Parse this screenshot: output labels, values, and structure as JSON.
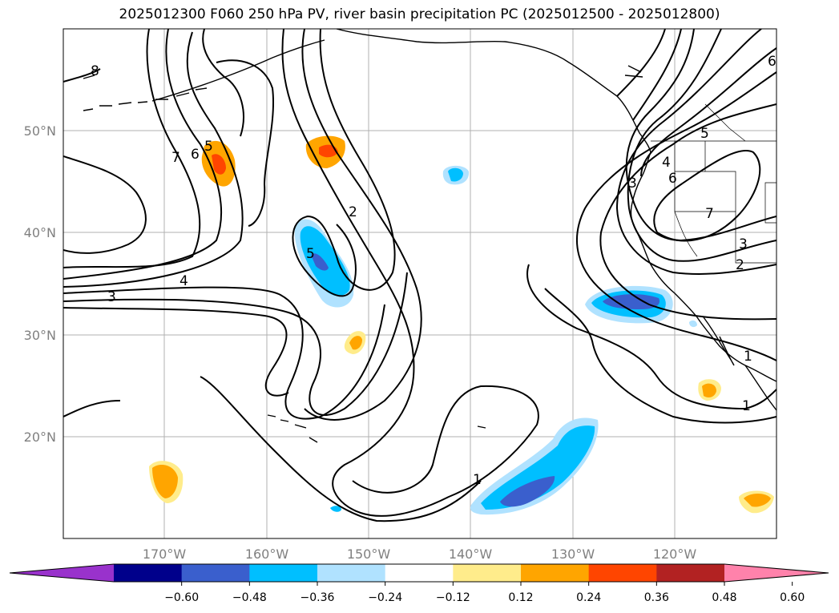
{
  "title": "2025012300 F060 250 hPa PV, river basin precipitation PC (2025012500 - 2025012800)",
  "map": {
    "lat_labels": [
      "50°N",
      "40°N",
      "30°N",
      "20°N"
    ],
    "lon_labels": [
      "170°W",
      "160°W",
      "150°W",
      "140°W",
      "130°W",
      "120°W"
    ],
    "contour_labels": [
      "8",
      "7",
      "6",
      "5",
      "4",
      "3",
      "2",
      "5",
      "1",
      "1",
      "5",
      "4",
      "3",
      "6",
      "7",
      "3",
      "2",
      "1",
      "6"
    ]
  },
  "colorbar": {
    "colors": [
      "#9932cc",
      "#00008b",
      "#3a5fcd",
      "#00bfff",
      "#b0e2ff",
      "#ffffff",
      "#ffec8b",
      "#ffa500",
      "#ff4500",
      "#b22222",
      "#ff82ab"
    ],
    "tick_labels": [
      "−0.60",
      "−0.48",
      "−0.36",
      "−0.24",
      "−0.12",
      "0.12",
      "0.24",
      "0.36",
      "0.48",
      "0.60"
    ]
  }
}
